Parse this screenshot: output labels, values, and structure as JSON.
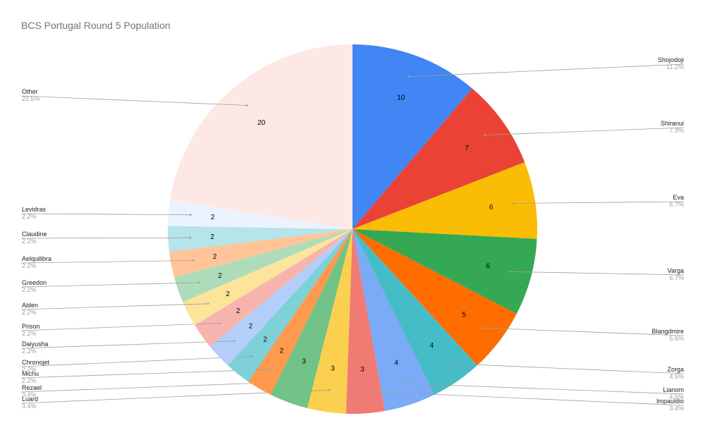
{
  "chart_data": {
    "type": "pie",
    "title": "BCS Portugal Round 5 Population",
    "slices": [
      {
        "label": "Shojodoji",
        "value": 10,
        "percent": "11.2%",
        "color": "#4285f4"
      },
      {
        "label": "Shiranui",
        "value": 7,
        "percent": "7.9%",
        "color": "#ea4335"
      },
      {
        "label": "Eva",
        "value": 6,
        "percent": "6.7%",
        "color": "#fbbc04"
      },
      {
        "label": "Varga",
        "value": 6,
        "percent": "6.7%",
        "color": "#34a853"
      },
      {
        "label": "Blangdmire",
        "value": 5,
        "percent": "5.6%",
        "color": "#ff6d01"
      },
      {
        "label": "Zorga",
        "value": 4,
        "percent": "4.5%",
        "color": "#46bdc6"
      },
      {
        "label": "Lianom",
        "value": 4,
        "percent": "4.5%",
        "color": "#7baaf7"
      },
      {
        "label": "Impauldio",
        "value": 3,
        "percent": "3.4%",
        "color": "#f07b72"
      },
      {
        "label": "Luard",
        "value": 3,
        "percent": "3.4%",
        "color": "#fcd04f"
      },
      {
        "label": "Rezael",
        "value": 3,
        "percent": "3.4%",
        "color": "#71c287"
      },
      {
        "label": "Michu",
        "value": 2,
        "percent": "2.2%",
        "color": "#ff994d"
      },
      {
        "label": "Chronojet",
        "value": 2,
        "percent": "2.2%",
        "color": "#7ed1d7"
      },
      {
        "label": "Daiyusha",
        "value": 2,
        "percent": "2.2%",
        "color": "#b3cefb"
      },
      {
        "label": "Prison",
        "value": 2,
        "percent": "2.2%",
        "color": "#f7b4ae"
      },
      {
        "label": "Alden",
        "value": 2,
        "percent": "2.2%",
        "color": "#fde49b"
      },
      {
        "label": "Greedon",
        "value": 2,
        "percent": "2.2%",
        "color": "#aedcba"
      },
      {
        "label": "Aelquilibra",
        "value": 2,
        "percent": "2.2%",
        "color": "#ffc599"
      },
      {
        "label": "Claudine",
        "value": 2,
        "percent": "2.2%",
        "color": "#b5e5e8"
      },
      {
        "label": "Levidras",
        "value": 2,
        "percent": "2.2%",
        "color": "#ecf3fe"
      },
      {
        "label": "Other",
        "value": 20,
        "percent": "22.5%",
        "color": "#fde8e6"
      }
    ],
    "legend": "callouts"
  }
}
